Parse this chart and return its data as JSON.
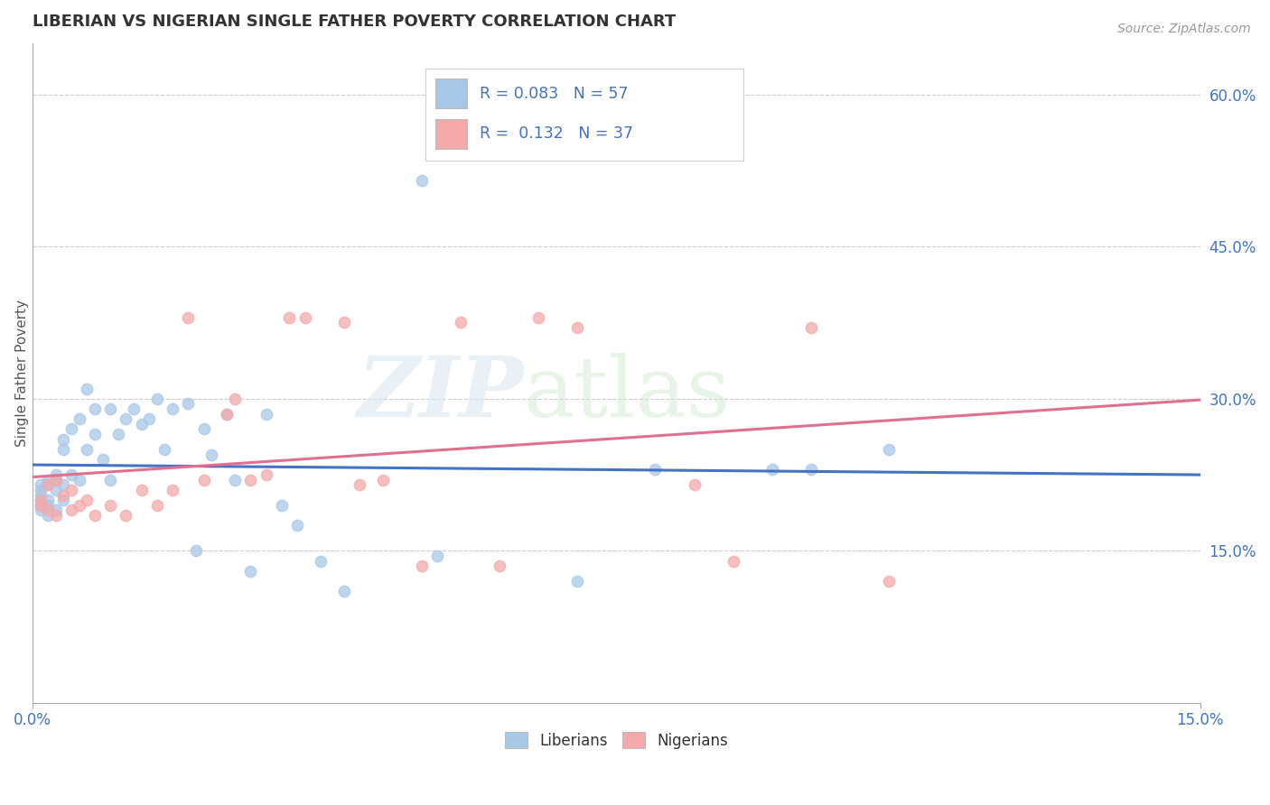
{
  "title": "LIBERIAN VS NIGERIAN SINGLE FATHER POVERTY CORRELATION CHART",
  "source": "Source: ZipAtlas.com",
  "ylabel": "Single Father Poverty",
  "xlim": [
    0.0,
    0.15
  ],
  "ylim": [
    0.0,
    0.65
  ],
  "yticks_right": [
    0.15,
    0.3,
    0.45,
    0.6
  ],
  "ytick_labels_right": [
    "15.0%",
    "30.0%",
    "45.0%",
    "60.0%"
  ],
  "liberian_color": "#a8c8e8",
  "nigerian_color": "#f4aaaa",
  "liberian_line_color": "#4472c4",
  "nigerian_line_color": "#e07090",
  "R_liberian": 0.083,
  "N_liberian": 57,
  "R_nigerian": 0.132,
  "N_nigerian": 37,
  "legend_label_1": "Liberians",
  "legend_label_2": "Nigerians",
  "background_color": "#ffffff",
  "grid_color": "#cccccc",
  "liberian_x": [
    0.001,
    0.001,
    0.001,
    0.001,
    0.001,
    0.001,
    0.002,
    0.002,
    0.002,
    0.002,
    0.002,
    0.003,
    0.003,
    0.003,
    0.003,
    0.004,
    0.004,
    0.004,
    0.004,
    0.005,
    0.005,
    0.006,
    0.006,
    0.007,
    0.007,
    0.008,
    0.008,
    0.009,
    0.01,
    0.01,
    0.011,
    0.012,
    0.013,
    0.014,
    0.015,
    0.016,
    0.017,
    0.018,
    0.02,
    0.021,
    0.022,
    0.023,
    0.025,
    0.026,
    0.028,
    0.03,
    0.032,
    0.034,
    0.037,
    0.04,
    0.05,
    0.052,
    0.07,
    0.08,
    0.095,
    0.1,
    0.11
  ],
  "liberian_y": [
    0.2,
    0.21,
    0.215,
    0.205,
    0.195,
    0.19,
    0.22,
    0.215,
    0.2,
    0.195,
    0.185,
    0.225,
    0.22,
    0.21,
    0.19,
    0.26,
    0.25,
    0.215,
    0.2,
    0.27,
    0.225,
    0.28,
    0.22,
    0.31,
    0.25,
    0.29,
    0.265,
    0.24,
    0.29,
    0.22,
    0.265,
    0.28,
    0.29,
    0.275,
    0.28,
    0.3,
    0.25,
    0.29,
    0.295,
    0.15,
    0.27,
    0.245,
    0.285,
    0.22,
    0.13,
    0.285,
    0.195,
    0.175,
    0.14,
    0.11,
    0.515,
    0.145,
    0.12,
    0.23,
    0.23,
    0.23,
    0.25
  ],
  "nigerian_x": [
    0.001,
    0.001,
    0.002,
    0.002,
    0.003,
    0.003,
    0.004,
    0.005,
    0.005,
    0.006,
    0.007,
    0.008,
    0.01,
    0.012,
    0.014,
    0.016,
    0.018,
    0.02,
    0.022,
    0.025,
    0.026,
    0.028,
    0.03,
    0.033,
    0.035,
    0.04,
    0.042,
    0.045,
    0.05,
    0.055,
    0.06,
    0.065,
    0.07,
    0.085,
    0.09,
    0.1,
    0.11
  ],
  "nigerian_y": [
    0.2,
    0.195,
    0.215,
    0.19,
    0.22,
    0.185,
    0.205,
    0.21,
    0.19,
    0.195,
    0.2,
    0.185,
    0.195,
    0.185,
    0.21,
    0.195,
    0.21,
    0.38,
    0.22,
    0.285,
    0.3,
    0.22,
    0.225,
    0.38,
    0.38,
    0.375,
    0.215,
    0.22,
    0.135,
    0.375,
    0.135,
    0.38,
    0.37,
    0.215,
    0.14,
    0.37,
    0.12
  ]
}
